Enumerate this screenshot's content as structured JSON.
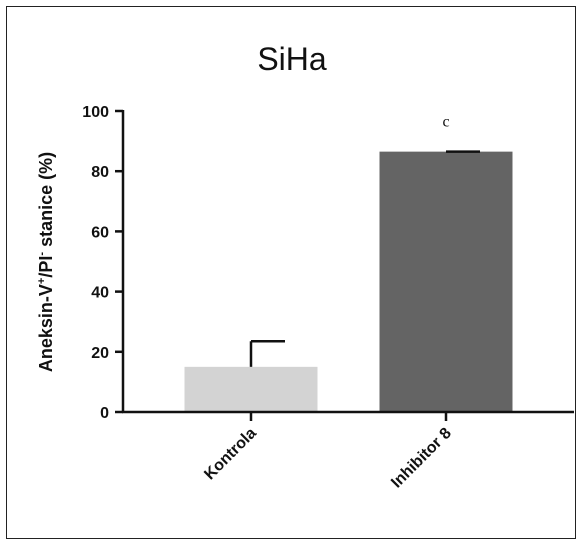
{
  "chart_data": {
    "type": "bar",
    "title": "SiHa",
    "ylabel": {
      "main": "Aneksin-V",
      "sup1": "+",
      "mid": "/PI",
      "sup2": "-",
      "end": " stanice (%)"
    },
    "ylim": [
      0,
      100
    ],
    "yticks": [
      "0",
      "20",
      "40",
      "60",
      "80",
      "100"
    ],
    "categories": [
      "Kontrola",
      "Inhibitor 8"
    ],
    "values": [
      15,
      86.5
    ],
    "error_upper": [
      23.5,
      86.5
    ],
    "bar_colors": [
      "#d3d3d3",
      "#646464"
    ],
    "annotations": [
      "",
      "c"
    ],
    "grid": false,
    "legend": "none"
  }
}
